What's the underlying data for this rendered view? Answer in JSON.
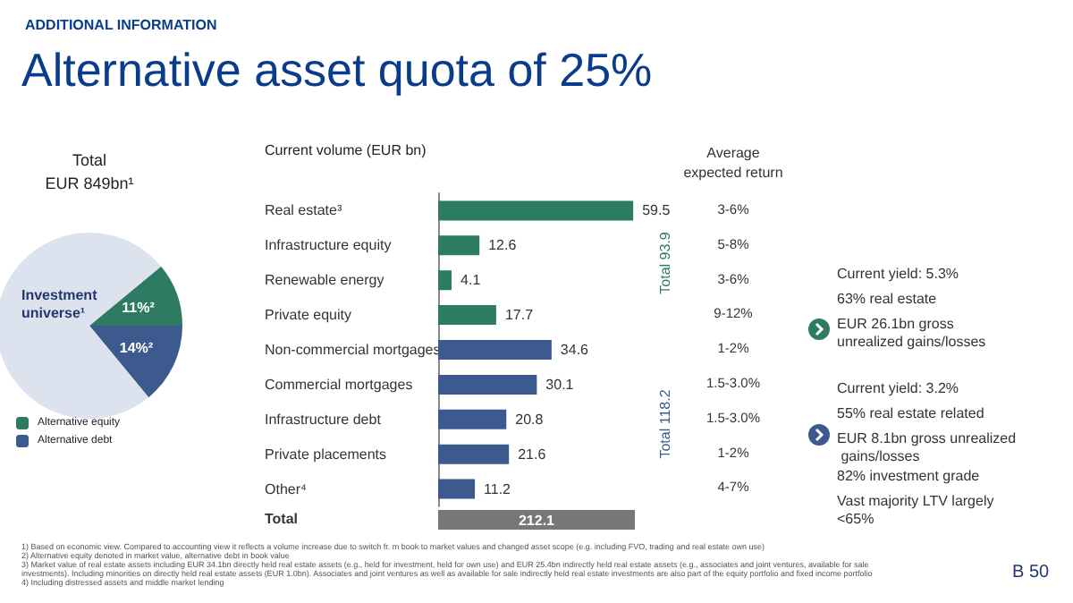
{
  "chart_data": [
    {
      "type": "other",
      "title": "Alternative asset quota of 25%",
      "subtitle": "ADDITIONAL INFORMATION",
      "annotations": [
        "1) Based on economic view. Compared to accounting view it reflects a volume increase due to switch fr. m book to market values and changed asset scope (e.g. including FVO, trading and real estate own use)",
        "2) Alternative equity denoted in market value, alternative debt in book value",
        "3) Market value of real estate assets including EUR 34.1bn directly held real estate assets (e.g., held for investment, held for own use) and EUR 25.4bn indirectly held real estate assets (e.g., associates and joint ventures, available for sale investments). Including minorities on directly held real estate assets (EUR 1.0bn). Associates and joint ventures as well as available for sale indirectly held real estate investments are also part of the equity portfolio and fixed income portfolio",
        "4) Including distressed assets and middle market lending",
        "B 50"
      ]
    },
    {
      "type": "pie",
      "title": "Total",
      "annotations": [
        "EUR 849bn¹"
      ],
      "categories": [
        "Alternative equity",
        "Alternative debt",
        "Investment universe¹"
      ],
      "values": [
        11,
        14,
        75
      ],
      "colors": [
        "#2e7b63",
        "#3c5a8e",
        "#dde3ee"
      ],
      "value_labels": [
        "11%²",
        "14%²",
        null
      ],
      "legend": "bottom left"
    },
    {
      "type": "bar",
      "orientation": "horizontal",
      "title": "Current volume (EUR bn)",
      "categories": [
        "Real estate³",
        "Infrastructure equity",
        "Renewable energy",
        "Private equity",
        "Non-commercial mortgages",
        "Commercial mortgages",
        "Infrastructure debt",
        "Private placements",
        "Other⁴"
      ],
      "values": [
        59.5,
        12.6,
        4.1,
        17.7,
        34.6,
        30.1,
        20.8,
        21.6,
        11.2
      ],
      "colors": [
        "#2e7b63",
        "#2e7b63",
        "#2e7b63",
        "#2e7b63",
        "#3c5a8e",
        "#3c5a8e",
        "#3c5a8e",
        "#3c5a8e",
        "#3c5a8e"
      ],
      "data_labels": true,
      "annotations": [
        "Average\nexpected return",
        "Total 93.9",
        "Total 118.2",
        "Total",
        "212.1",
        "Current yield: 5.3%",
        "63% real estate",
        "EUR 26.1bn gross unrealized gains/losses",
        "Current yield: 3.2%",
        "55% real estate related",
        "EUR 8.1bn gross unrealized gains/losses",
        "82% investment grade",
        "Vast majority LTV largely <65%",
        "3-6%",
        "5-8%",
        "3-6%",
        "9-12%",
        "1-2%",
        "1.5-3.0%",
        "1.5-3.0%",
        "1-2%",
        "4-7%"
      ]
    }
  ]
}
